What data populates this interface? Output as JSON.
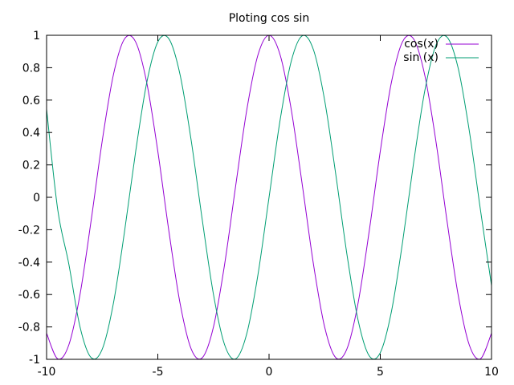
{
  "chart_data": {
    "type": "line",
    "title": "Ploting cos sin",
    "xlabel": "",
    "ylabel": "",
    "xlim": [
      -10,
      10
    ],
    "ylim": [
      -1,
      1
    ],
    "grid": false,
    "legend_position": "top-right",
    "x_ticks": [
      -10,
      -5,
      0,
      5,
      10
    ],
    "y_ticks": [
      -1,
      -0.8,
      -0.6,
      -0.4,
      -0.2,
      0,
      0.2,
      0.4,
      0.6,
      0.8,
      1
    ],
    "x_tick_labels": [
      "-10",
      "-5",
      "0",
      "5",
      "10"
    ],
    "y_tick_labels": [
      "-1",
      "-0.8",
      "-0.6",
      "-0.4",
      "-0.2",
      "0",
      "0.2",
      "0.4",
      "0.6",
      "0.8",
      "1"
    ],
    "series": [
      {
        "name": "cos(x)",
        "color": "#9400d3",
        "x": [
          -10,
          -9.5,
          -9,
          -8.5,
          -8,
          -7.5,
          -7,
          -6.5,
          -6,
          -5.5,
          -5,
          -4.5,
          -4,
          -3.5,
          -3,
          -2.5,
          -2,
          -1.5,
          -1,
          -0.5,
          0,
          0.5,
          1,
          1.5,
          2,
          2.5,
          3,
          3.5,
          4,
          4.5,
          5,
          5.5,
          6,
          6.5,
          7,
          7.5,
          8,
          8.5,
          9,
          9.5,
          10
        ],
        "values": [
          -0.839,
          -0.997,
          -0.911,
          -0.602,
          -0.146,
          0.347,
          0.754,
          0.977,
          0.96,
          0.709,
          0.284,
          -0.211,
          -0.654,
          -0.936,
          -0.99,
          -0.801,
          -0.416,
          0.071,
          0.54,
          0.878,
          1.0,
          0.878,
          0.54,
          0.071,
          -0.416,
          -0.801,
          -0.99,
          -0.936,
          -0.654,
          -0.211,
          0.284,
          0.709,
          0.96,
          0.977,
          0.754,
          0.347,
          -0.146,
          -0.602,
          -0.911,
          -0.997,
          -0.839
        ]
      },
      {
        "name": "sin (x)",
        "color": "#009e73",
        "x": [
          -10,
          -9.5,
          -9,
          -8.5,
          -8,
          -7.5,
          -7,
          -6.5,
          -6,
          -5.5,
          -5,
          -4.5,
          -4,
          -3.5,
          -3,
          -2.5,
          -2,
          -1.5,
          -1,
          -0.5,
          0,
          0.5,
          1,
          1.5,
          2,
          2.5,
          3,
          3.5,
          4,
          4.5,
          5,
          5.5,
          6,
          6.5,
          7,
          7.5,
          8,
          8.5,
          9,
          9.5,
          10
        ],
        "values": [
          0.544,
          -0.075,
          -0.412,
          -0.798,
          -0.989,
          -0.938,
          -0.657,
          -0.215,
          0.279,
          0.706,
          0.959,
          0.978,
          0.757,
          0.351,
          -0.141,
          -0.598,
          -0.909,
          -0.997,
          -0.841,
          -0.479,
          0,
          0.479,
          0.841,
          0.997,
          0.909,
          0.598,
          0.141,
          -0.351,
          -0.757,
          -0.978,
          -0.959,
          -0.706,
          -0.279,
          0.215,
          0.657,
          0.938,
          0.989,
          0.798,
          0.412,
          -0.075,
          -0.544
        ]
      }
    ]
  }
}
